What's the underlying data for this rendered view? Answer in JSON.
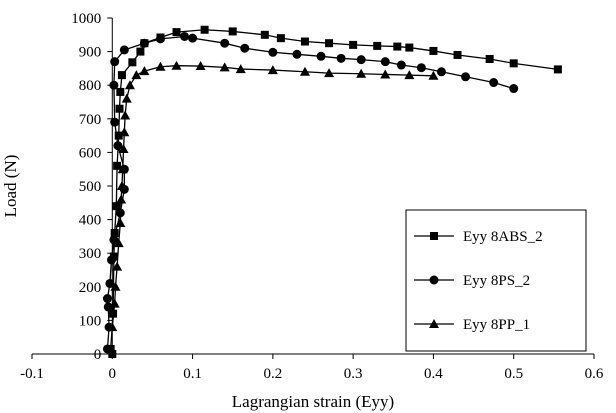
{
  "chart_data": {
    "type": "line",
    "title": "",
    "xlabel": "Lagrangian strain (Eyy)",
    "ylabel": "Load (N)",
    "xlim": [
      -0.1,
      0.6
    ],
    "ylim": [
      0,
      1000
    ],
    "xticks": [
      -0.1,
      0,
      0.1,
      0.2,
      0.3,
      0.4,
      0.5,
      0.6
    ],
    "yticks": [
      0,
      100,
      200,
      300,
      400,
      500,
      600,
      700,
      800,
      900,
      1000
    ],
    "x_tick_labels": [
      "-0.1",
      "0",
      "0.1",
      "0.2",
      "0.3",
      "0.4",
      "0.5",
      "0.6"
    ],
    "y_tick_labels": [
      "0",
      "100",
      "200",
      "300",
      "400",
      "500",
      "600",
      "700",
      "800",
      "900",
      "1000"
    ],
    "grid": false,
    "legend_position": "right",
    "series": [
      {
        "name": "Eyy 8ABS_2",
        "marker": "square",
        "color": "#000000",
        "points": [
          [
            0.0,
            0
          ],
          [
            -0.002,
            15
          ],
          [
            0.001,
            120
          ],
          [
            0.002,
            290
          ],
          [
            0.003,
            360
          ],
          [
            0.005,
            440
          ],
          [
            0.006,
            560
          ],
          [
            0.008,
            650
          ],
          [
            0.009,
            730
          ],
          [
            0.01,
            780
          ],
          [
            0.012,
            830
          ],
          [
            0.025,
            868
          ],
          [
            0.035,
            900
          ],
          [
            0.04,
            925
          ],
          [
            0.06,
            942
          ],
          [
            0.08,
            958
          ],
          [
            0.115,
            965
          ],
          [
            0.15,
            960
          ],
          [
            0.19,
            950
          ],
          [
            0.21,
            940
          ],
          [
            0.24,
            930
          ],
          [
            0.27,
            925
          ],
          [
            0.3,
            920
          ],
          [
            0.33,
            917
          ],
          [
            0.355,
            915
          ],
          [
            0.37,
            912
          ],
          [
            0.4,
            902
          ],
          [
            0.43,
            890
          ],
          [
            0.47,
            878
          ],
          [
            0.5,
            865
          ],
          [
            0.555,
            847
          ]
        ]
      },
      {
        "name": "Eyy 8PS_2",
        "marker": "circle",
        "color": "#000000",
        "points": [
          [
            -0.006,
            15
          ],
          [
            -0.004,
            80
          ],
          [
            -0.005,
            140
          ],
          [
            -0.006,
            165
          ],
          [
            -0.003,
            210
          ],
          [
            -0.001,
            280
          ],
          [
            0.002,
            340
          ],
          [
            0.01,
            420
          ],
          [
            0.015,
            490
          ],
          [
            0.015,
            550
          ],
          [
            0.007,
            620
          ],
          [
            0.003,
            690
          ],
          [
            0.002,
            800
          ],
          [
            0.003,
            870
          ],
          [
            0.015,
            905
          ],
          [
            0.04,
            925
          ],
          [
            0.06,
            938
          ],
          [
            0.09,
            945
          ],
          [
            0.1,
            940
          ],
          [
            0.14,
            925
          ],
          [
            0.165,
            910
          ],
          [
            0.2,
            898
          ],
          [
            0.23,
            892
          ],
          [
            0.26,
            886
          ],
          [
            0.285,
            880
          ],
          [
            0.31,
            876
          ],
          [
            0.34,
            870
          ],
          [
            0.36,
            860
          ],
          [
            0.385,
            852
          ],
          [
            0.41,
            840
          ],
          [
            0.44,
            825
          ],
          [
            0.475,
            808
          ],
          [
            0.5,
            790
          ]
        ]
      },
      {
        "name": "Eyy 8PP_1",
        "marker": "triangle",
        "color": "#000000",
        "points": [
          [
            0.0,
            80
          ],
          [
            0.003,
            150
          ],
          [
            0.004,
            200
          ],
          [
            0.006,
            260
          ],
          [
            0.008,
            330
          ],
          [
            0.01,
            390
          ],
          [
            0.011,
            460
          ],
          [
            0.012,
            500
          ],
          [
            0.013,
            550
          ],
          [
            0.014,
            610
          ],
          [
            0.015,
            660
          ],
          [
            0.016,
            710
          ],
          [
            0.018,
            760
          ],
          [
            0.022,
            800
          ],
          [
            0.03,
            830
          ],
          [
            0.04,
            842
          ],
          [
            0.06,
            855
          ],
          [
            0.08,
            858
          ],
          [
            0.11,
            857
          ],
          [
            0.14,
            853
          ],
          [
            0.16,
            848
          ],
          [
            0.2,
            845
          ],
          [
            0.24,
            840
          ],
          [
            0.27,
            836
          ],
          [
            0.31,
            834
          ],
          [
            0.34,
            832
          ],
          [
            0.37,
            830
          ],
          [
            0.4,
            828
          ]
        ]
      }
    ]
  }
}
